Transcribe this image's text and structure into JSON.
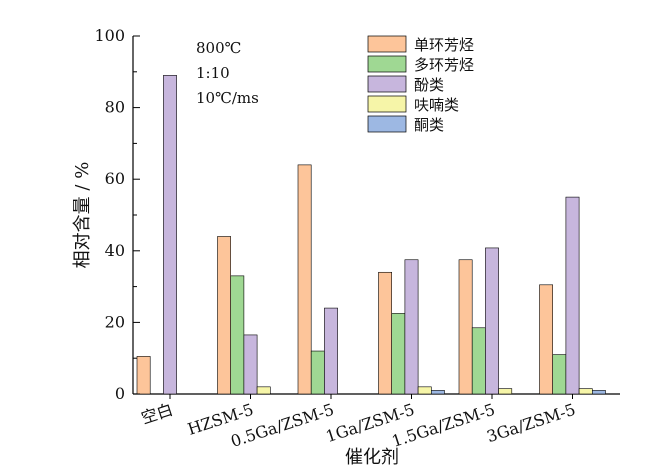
{
  "chart_data": {
    "type": "bar",
    "title": "",
    "xlabel": "催化剂",
    "ylabel": "相对含量 / %",
    "ylim": [
      0,
      100
    ],
    "yticks": [
      0,
      20,
      40,
      60,
      80,
      100
    ],
    "categories": [
      "空白",
      "HZSM-5",
      "0.5Ga/ZSM-5",
      "1Ga/ZSM-5",
      "1.5Ga/ZSM-5",
      "3Ga/ZSM-5"
    ],
    "series": [
      {
        "name": "单环芳烃",
        "color": "#fdc59a",
        "values": [
          10.5,
          44,
          64,
          34,
          37.5,
          30.5
        ]
      },
      {
        "name": "多环芳烃",
        "color": "#9fd893",
        "values": [
          0,
          33,
          12,
          22.5,
          18.5,
          11
        ]
      },
      {
        "name": "酚类",
        "color": "#c7b6dd",
        "values": [
          89,
          16.5,
          24,
          37.5,
          40.8,
          55
        ]
      },
      {
        "name": "呋喃类",
        "color": "#f6f5a8",
        "values": [
          0,
          2,
          0,
          2,
          1.5,
          1.5
        ]
      },
      {
        "name": "酮类",
        "color": "#9db8e3",
        "values": [
          0,
          0,
          0,
          1,
          0,
          1
        ]
      }
    ],
    "annotations": [
      "800℃",
      "1:10",
      "10℃/ms"
    ],
    "legend_position": "top-right",
    "grid": false
  }
}
